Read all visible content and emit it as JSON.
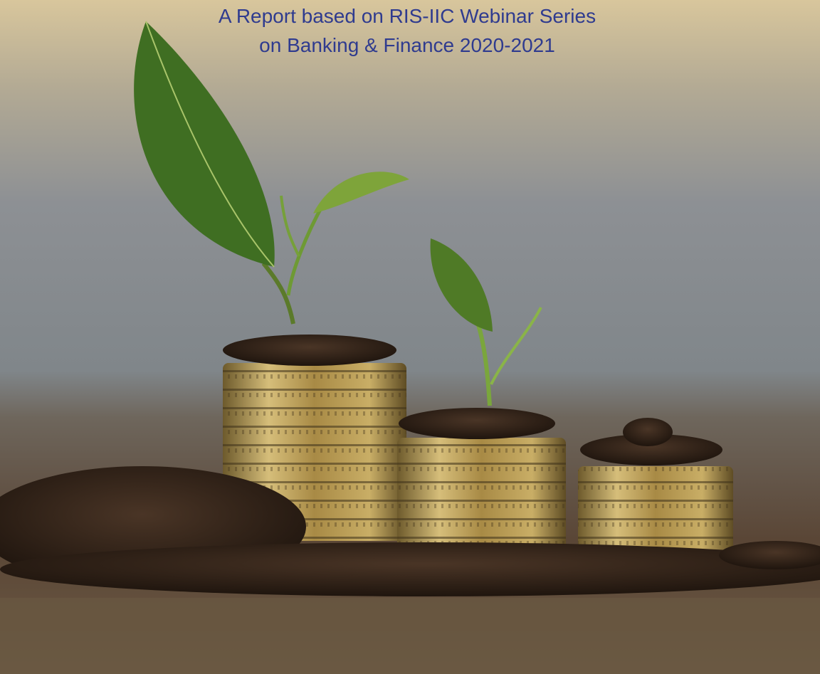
{
  "header": {
    "lines": [
      "A Report based on RIS-IIC Webinar Series",
      "on Banking & Finance 2020-2021"
    ]
  }
}
